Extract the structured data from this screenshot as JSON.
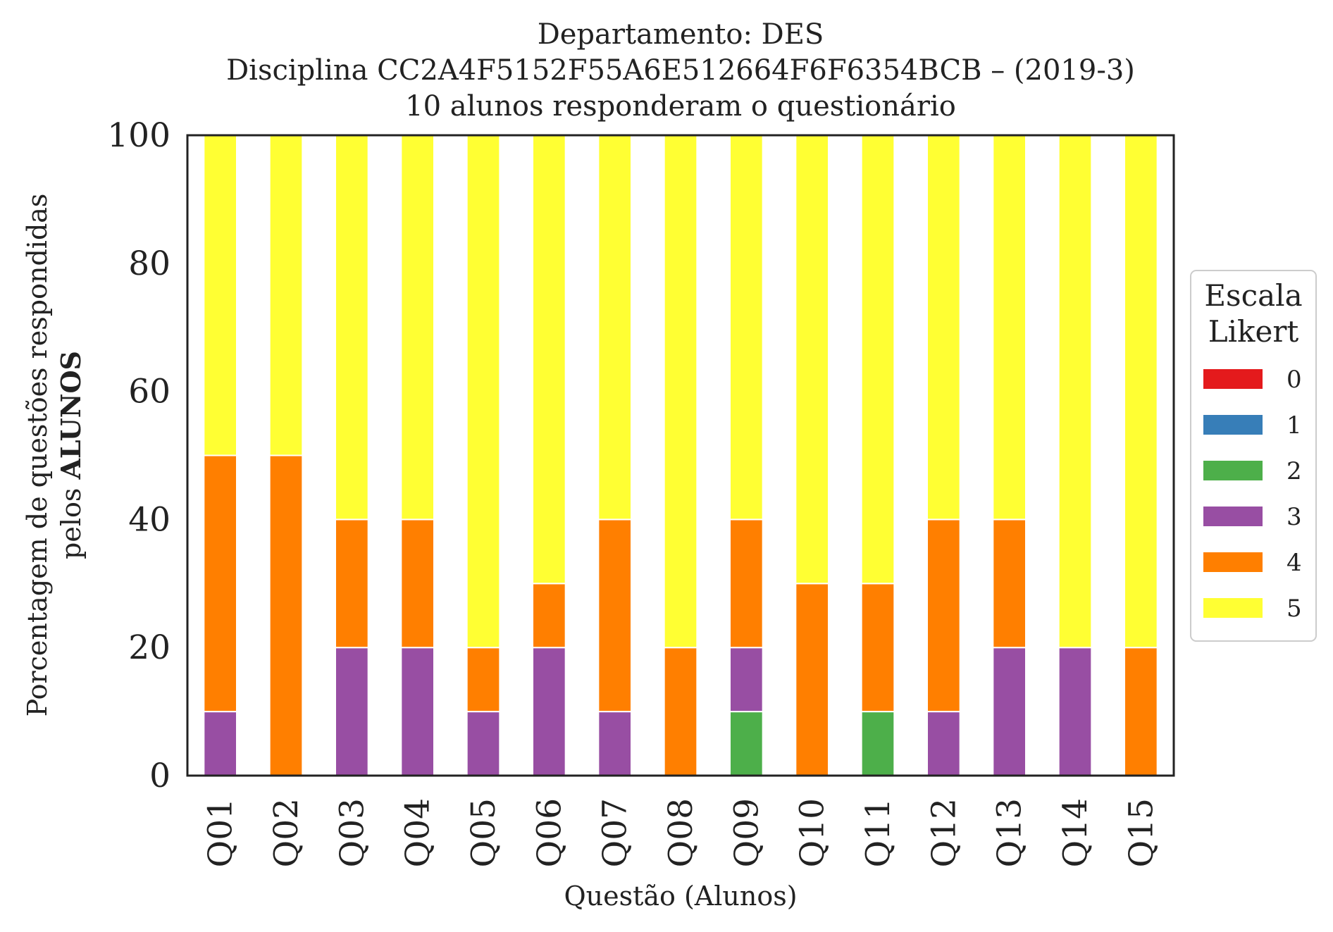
{
  "chart_data": {
    "type": "bar",
    "stacked": true,
    "title": [
      "Departamento: DES",
      "Disciplina CC2A4F5152F55A6E512664F6F6354BCB – (2019-3)",
      "10 alunos responderam o questionário"
    ],
    "xlabel": "Questão (Alunos)",
    "ylabel_line1": "Porcentagem de questões respondidas",
    "ylabel_line2_prefix": "pelos ",
    "ylabel_line2_bold": "ALUNOS",
    "ylim": [
      0,
      100
    ],
    "yticks": [
      0,
      20,
      40,
      60,
      80,
      100
    ],
    "grid": false,
    "legend": {
      "title": [
        "Escala",
        "Likert"
      ],
      "placement": "right"
    },
    "categories": [
      "Q01",
      "Q02",
      "Q03",
      "Q04",
      "Q05",
      "Q06",
      "Q07",
      "Q08",
      "Q09",
      "Q10",
      "Q11",
      "Q12",
      "Q13",
      "Q14",
      "Q15"
    ],
    "series": [
      {
        "name": "0",
        "color": "#e41a1c",
        "values": [
          0,
          0,
          0,
          0,
          0,
          0,
          0,
          0,
          0,
          0,
          0,
          0,
          0,
          0,
          0
        ]
      },
      {
        "name": "1",
        "color": "#377eb8",
        "values": [
          0,
          0,
          0,
          0,
          0,
          0,
          0,
          0,
          0,
          0,
          0,
          0,
          0,
          0,
          0
        ]
      },
      {
        "name": "2",
        "color": "#4daf4a",
        "values": [
          0,
          0,
          0,
          0,
          0,
          0,
          0,
          0,
          10,
          0,
          10,
          0,
          0,
          0,
          0
        ]
      },
      {
        "name": "3",
        "color": "#984ea3",
        "values": [
          10,
          0,
          20,
          20,
          10,
          20,
          10,
          0,
          10,
          0,
          0,
          10,
          20,
          20,
          0
        ]
      },
      {
        "name": "4",
        "color": "#ff7f00",
        "values": [
          40,
          50,
          20,
          20,
          10,
          10,
          30,
          20,
          20,
          30,
          20,
          30,
          20,
          0,
          20
        ]
      },
      {
        "name": "5",
        "color": "#ffff33",
        "values": [
          50,
          50,
          60,
          60,
          80,
          70,
          60,
          80,
          60,
          70,
          70,
          60,
          60,
          80,
          80
        ]
      }
    ]
  }
}
